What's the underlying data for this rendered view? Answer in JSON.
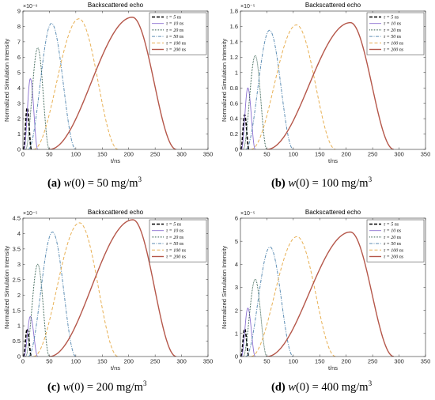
{
  "figure": {
    "panels": [
      {
        "caption": {
          "label": "(a)",
          "prefix": "w(0) = 50 mg/m",
          "sup": "3"
        },
        "chart_data": {
          "type": "line",
          "title": "Backscattered echo",
          "xlabel": "t/ns",
          "ylabel": "Normalized Simulation Intensity",
          "xlim": [
            0,
            350
          ],
          "ylim": [
            0,
            9
          ],
          "xticks": [
            0,
            50,
            100,
            150,
            200,
            250,
            300,
            350
          ],
          "yticks": [
            0,
            1,
            2,
            3,
            4,
            5,
            6,
            7,
            8,
            9
          ],
          "y_exponent": "×10⁻⁶",
          "grid": false,
          "legend_position": "top-right",
          "series": [
            {
              "name": "τ = 5 ns",
              "peak_x": 8,
              "peak_y": 2.7,
              "start_x": 1,
              "end_x": 16
            },
            {
              "name": "τ = 10 ns",
              "peak_x": 14,
              "peak_y": 4.6,
              "start_x": 2,
              "end_x": 28
            },
            {
              "name": "τ = 20 ns",
              "peak_x": 28,
              "peak_y": 6.6,
              "start_x": 5,
              "end_x": 50
            },
            {
              "name": "τ = 50 ns",
              "peak_x": 54,
              "peak_y": 8.2,
              "start_x": 10,
              "end_x": 100
            },
            {
              "name": "τ = 100 ns",
              "peak_x": 106,
              "peak_y": 8.5,
              "start_x": 20,
              "end_x": 180
            },
            {
              "name": "τ = 200 ns",
              "peak_x": 207,
              "peak_y": 8.6,
              "start_x": 50,
              "end_x": 290
            }
          ]
        }
      },
      {
        "caption": {
          "label": "(b)",
          "prefix": "w(0) = 100 mg/m",
          "sup": "3"
        },
        "chart_data": {
          "type": "line",
          "title": "Backscattered echo",
          "xlabel": "t/ns",
          "ylabel": "Normalized Simulation Intensity",
          "xlim": [
            0,
            350
          ],
          "ylim": [
            0,
            1.8
          ],
          "xticks": [
            0,
            50,
            100,
            150,
            200,
            250,
            300,
            350
          ],
          "yticks": [
            0,
            0.2,
            0.4,
            0.6,
            0.8,
            1,
            1.2,
            1.4,
            1.6,
            1.8
          ],
          "y_exponent": "×10⁻⁵",
          "grid": false,
          "legend_position": "top-right",
          "series": [
            {
              "name": "τ = 5 ns",
              "peak_x": 8,
              "peak_y": 0.45,
              "start_x": 1,
              "end_x": 16
            },
            {
              "name": "τ = 10 ns",
              "peak_x": 14,
              "peak_y": 0.8,
              "start_x": 2,
              "end_x": 28
            },
            {
              "name": "τ = 20 ns",
              "peak_x": 28,
              "peak_y": 1.22,
              "start_x": 5,
              "end_x": 50
            },
            {
              "name": "τ = 50 ns",
              "peak_x": 55,
              "peak_y": 1.55,
              "start_x": 10,
              "end_x": 100
            },
            {
              "name": "τ = 100 ns",
              "peak_x": 106,
              "peak_y": 1.62,
              "start_x": 20,
              "end_x": 180
            },
            {
              "name": "τ = 200 ns",
              "peak_x": 208,
              "peak_y": 1.65,
              "start_x": 50,
              "end_x": 290
            }
          ]
        }
      },
      {
        "caption": {
          "label": "(c)",
          "prefix": "w(0) = 200 mg/m",
          "sup": "3"
        },
        "chart_data": {
          "type": "line",
          "title": "Backscattered echo",
          "xlabel": "t/ns",
          "ylabel": "Normalized Simulation Intensity",
          "xlim": [
            0,
            350
          ],
          "ylim": [
            0,
            4.5
          ],
          "xticks": [
            0,
            50,
            100,
            150,
            200,
            250,
            300,
            350
          ],
          "yticks": [
            0,
            0.5,
            1,
            1.5,
            2,
            2.5,
            3,
            3.5,
            4,
            4.5
          ],
          "y_exponent": "×10⁻⁵",
          "grid": false,
          "legend_position": "top-right",
          "series": [
            {
              "name": "τ = 5 ns",
              "peak_x": 8,
              "peak_y": 0.9,
              "start_x": 1,
              "end_x": 16
            },
            {
              "name": "τ = 10 ns",
              "peak_x": 14,
              "peak_y": 1.3,
              "start_x": 2,
              "end_x": 28
            },
            {
              "name": "τ = 20 ns",
              "peak_x": 28,
              "peak_y": 3.0,
              "start_x": 5,
              "end_x": 50
            },
            {
              "name": "τ = 50 ns",
              "peak_x": 56,
              "peak_y": 4.05,
              "start_x": 10,
              "end_x": 100
            },
            {
              "name": "τ = 100 ns",
              "peak_x": 107,
              "peak_y": 4.35,
              "start_x": 20,
              "end_x": 180
            },
            {
              "name": "τ = 200 ns",
              "peak_x": 208,
              "peak_y": 4.45,
              "start_x": 50,
              "end_x": 290
            }
          ]
        }
      },
      {
        "caption": {
          "label": "(d)",
          "prefix": "w(0) = 400 mg/m",
          "sup": "3"
        },
        "chart_data": {
          "type": "line",
          "title": "Backscattered echo",
          "xlabel": "t/ns",
          "ylabel": "Normalized Simulation Intensity",
          "xlim": [
            0,
            350
          ],
          "ylim": [
            0,
            6
          ],
          "xticks": [
            0,
            50,
            100,
            150,
            200,
            250,
            300,
            350
          ],
          "yticks": [
            0,
            1,
            2,
            3,
            4,
            5,
            6
          ],
          "y_exponent": "×10⁻⁵",
          "grid": false,
          "legend_position": "top-right",
          "series": [
            {
              "name": "τ = 5 ns",
              "peak_x": 8,
              "peak_y": 1.2,
              "start_x": 1,
              "end_x": 16
            },
            {
              "name": "τ = 10 ns",
              "peak_x": 14,
              "peak_y": 2.1,
              "start_x": 2,
              "end_x": 28
            },
            {
              "name": "τ = 20 ns",
              "peak_x": 28,
              "peak_y": 3.35,
              "start_x": 5,
              "end_x": 50
            },
            {
              "name": "τ = 50 ns",
              "peak_x": 56,
              "peak_y": 4.75,
              "start_x": 10,
              "end_x": 100
            },
            {
              "name": "τ = 100 ns",
              "peak_x": 107,
              "peak_y": 5.2,
              "start_x": 20,
              "end_x": 180
            },
            {
              "name": "τ = 200 ns",
              "peak_x": 208,
              "peak_y": 5.4,
              "start_x": 50,
              "end_x": 290
            }
          ]
        }
      }
    ],
    "series_styles": [
      {
        "color": "#000000",
        "dash": "4,2",
        "width": 1.6
      },
      {
        "color": "#8a6fd0",
        "dash": "",
        "width": 0.9
      },
      {
        "color": "#2e5a4a",
        "dash": "1,1",
        "width": 1.0
      },
      {
        "color": "#5f8fb5",
        "dash": "4,1.5,1,1.5",
        "width": 1.0
      },
      {
        "color": "#e8b054",
        "dash": "4,2.5",
        "width": 1.0
      },
      {
        "color": "#b5574a",
        "dash": "",
        "width": 1.4
      }
    ]
  }
}
